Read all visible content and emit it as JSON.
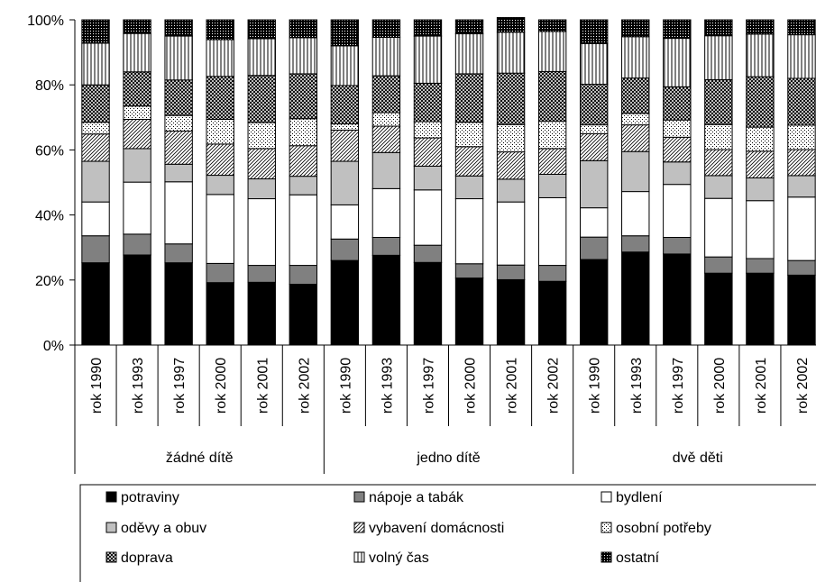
{
  "chart_data": {
    "type": "bar",
    "stacked": true,
    "percent_axis": true,
    "ylim": [
      0,
      100
    ],
    "yticks": [
      "0%",
      "20%",
      "40%",
      "60%",
      "80%",
      "100%"
    ],
    "groups": [
      {
        "name": "žádné dítě",
        "categories": [
          "rok 1990",
          "rok 1993",
          "rok 1997",
          "rok 2000",
          "rok 2001",
          "rok 2002"
        ]
      },
      {
        "name": "jedno dítě",
        "categories": [
          "rok 1990",
          "rok 1993",
          "rok 1997",
          "rok 2000",
          "rok 2001",
          "rok 2002"
        ]
      },
      {
        "name": "dvě děti",
        "categories": [
          "rok 1990",
          "rok 1993",
          "rok 1997",
          "rok 2000",
          "rok 2001",
          "rok 2002"
        ]
      }
    ],
    "series": [
      {
        "name": "potraviny",
        "pattern": "solid-black",
        "values": [
          25.3,
          27.7,
          25.3,
          19.2,
          19.3,
          18.7,
          26.0,
          27.6,
          25.4,
          20.6,
          20.1,
          19.6,
          26.3,
          28.6,
          28.0,
          22.1,
          22.1,
          21.5
        ]
      },
      {
        "name": "nápoje a tabák",
        "pattern": "solid-gray",
        "values": [
          8.3,
          6.4,
          5.8,
          5.9,
          5.2,
          5.8,
          6.6,
          5.5,
          5.3,
          4.4,
          4.5,
          4.9,
          6.9,
          5.0,
          5.1,
          5.0,
          4.5,
          4.5
        ]
      },
      {
        "name": "bydlení",
        "pattern": "white",
        "values": [
          10.4,
          16.0,
          19.1,
          21.2,
          20.5,
          21.7,
          10.5,
          15.0,
          17.0,
          20.0,
          19.4,
          20.8,
          9.0,
          13.6,
          16.3,
          18.0,
          17.8,
          19.5
        ]
      },
      {
        "name": "oděvy a obuv",
        "pattern": "light-gray",
        "values": [
          12.5,
          10.3,
          5.4,
          5.9,
          6.1,
          5.7,
          13.4,
          11.1,
          7.3,
          7.0,
          7.0,
          7.2,
          14.5,
          12.3,
          6.9,
          7.0,
          7.0,
          6.6
        ]
      },
      {
        "name": "vybavení domácnosti",
        "pattern": "diagonal",
        "values": [
          8.4,
          9.0,
          10.2,
          9.6,
          9.3,
          9.4,
          9.6,
          8.1,
          8.7,
          9.0,
          8.4,
          7.9,
          8.3,
          8.2,
          7.6,
          8.0,
          8.2,
          8.0
        ]
      },
      {
        "name": "osobní potřeby",
        "pattern": "dots",
        "values": [
          3.6,
          4.1,
          4.8,
          7.6,
          8.0,
          8.3,
          1.9,
          4.2,
          5.0,
          7.5,
          8.4,
          8.4,
          2.7,
          3.5,
          5.3,
          7.7,
          7.4,
          7.5
        ]
      },
      {
        "name": "doprava",
        "pattern": "crosshatch",
        "values": [
          11.5,
          10.5,
          10.9,
          13.2,
          14.5,
          13.8,
          11.8,
          11.3,
          11.8,
          14.9,
          15.8,
          15.3,
          12.5,
          10.9,
          10.2,
          13.8,
          15.5,
          14.4
        ]
      },
      {
        "name": "volný čas",
        "pattern": "vertical-lines",
        "values": [
          12.8,
          11.8,
          13.5,
          11.3,
          11.3,
          11.1,
          12.2,
          11.8,
          14.5,
          12.3,
          12.6,
          12.3,
          12.5,
          12.7,
          14.9,
          13.5,
          13.1,
          13.4
        ]
      },
      {
        "name": "ostatní",
        "pattern": "dense",
        "values": [
          7.2,
          4.2,
          5.0,
          6.1,
          5.8,
          5.5,
          8.0,
          5.4,
          5.0,
          4.3,
          4.5,
          3.6,
          7.3,
          5.2,
          5.7,
          4.9,
          4.4,
          4.6
        ]
      }
    ],
    "legend_position": "bottom",
    "grid": false
  }
}
